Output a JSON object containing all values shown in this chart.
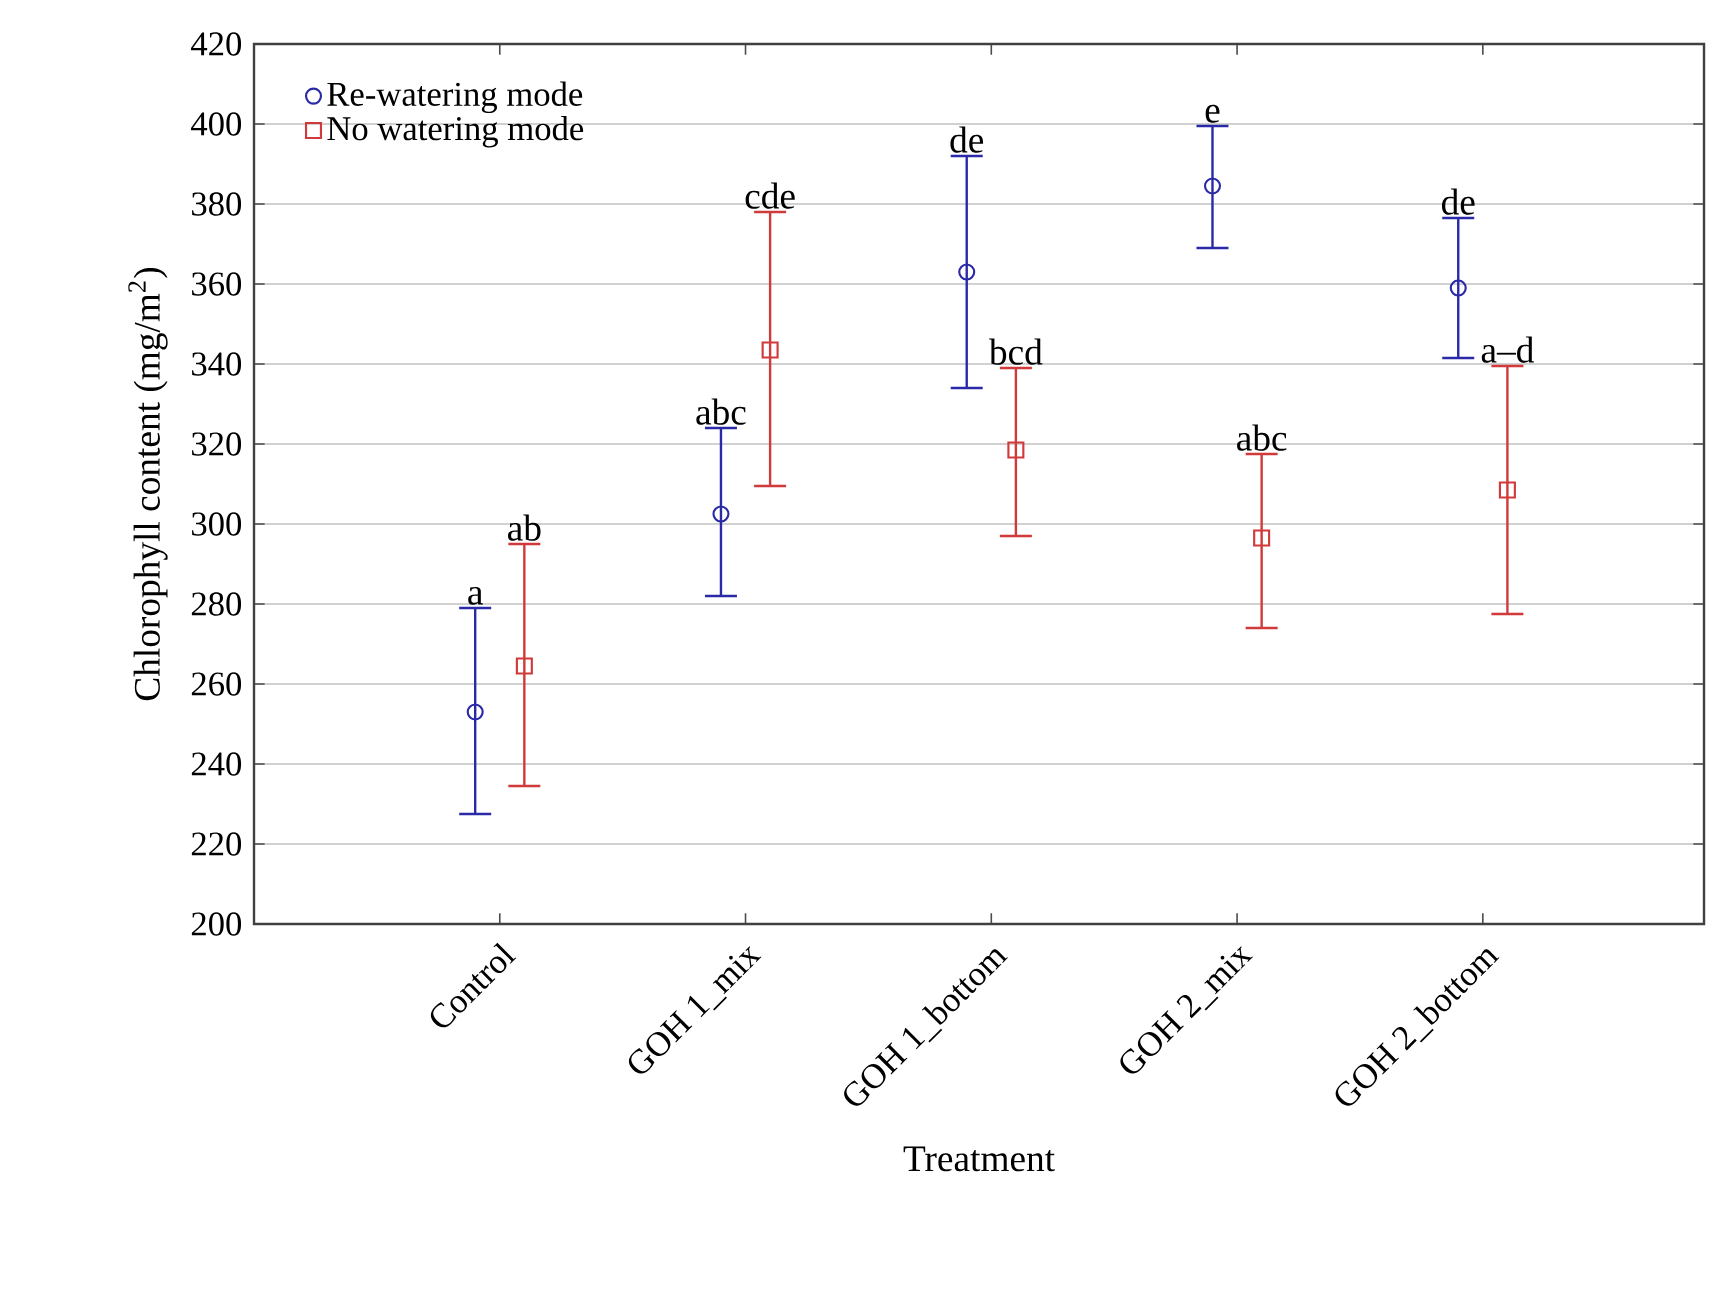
{
  "chart_data": {
    "type": "scatter",
    "xlabel": "Treatment",
    "ylabel": "Chlorophyll content (mg/m$^{2}$)",
    "categories": [
      "Control",
      "GOH 1_mix",
      "GOH 1_bottom",
      "GOH 2_mix",
      "GOH 2_bottom"
    ],
    "series": [
      {
        "name": "Re-watering mode",
        "color": "#2a2aa8",
        "marker": "circle",
        "values": [
          253,
          302.5,
          363,
          384.5,
          359
        ],
        "errors": [
          [
            227.5,
            279
          ],
          [
            282,
            324
          ],
          [
            334,
            392
          ],
          [
            369,
            399.5
          ],
          [
            341.5,
            376.5
          ]
        ]
      },
      {
        "name": "No watering mode",
        "color": "#d03a3a",
        "marker": "square",
        "values": [
          264.5,
          343.5,
          318.5,
          296.5,
          308.5
        ],
        "errors": [
          [
            234.5,
            295
          ],
          [
            309.5,
            378
          ],
          [
            297,
            339
          ],
          [
            274,
            317.5
          ],
          [
            277.5,
            339.5
          ]
        ]
      }
    ],
    "annotations": [
      {
        "text": "a",
        "x": "Control",
        "y": 279
      },
      {
        "text": "ab",
        "x": "Control",
        "y": 295
      },
      {
        "text": "abc",
        "x": "GOH 1_mix",
        "y": 324
      },
      {
        "text": "cde",
        "x": "GOH 1_mix",
        "y": 378
      },
      {
        "text": "de",
        "x": "GOH 1_bottom",
        "y": 392
      },
      {
        "text": "bcd",
        "x": "GOH 1_bottom",
        "y": 339
      },
      {
        "text": "e",
        "x": "GOH 2_mix",
        "y": 399.5
      },
      {
        "text": "abc",
        "x": "GOH 2_mix",
        "y": 317.5
      },
      {
        "text": "de",
        "x": "GOH 2_bottom",
        "y": 376.5
      },
      {
        "text": "a–d",
        "x": "GOH 2_bottom",
        "y": 339.5
      }
    ],
    "ylim": [
      200,
      420
    ],
    "yticks": [
      200,
      220,
      240,
      260,
      280,
      300,
      320,
      340,
      360,
      380,
      400,
      420
    ],
    "grid": "y",
    "legend": "top left"
  }
}
